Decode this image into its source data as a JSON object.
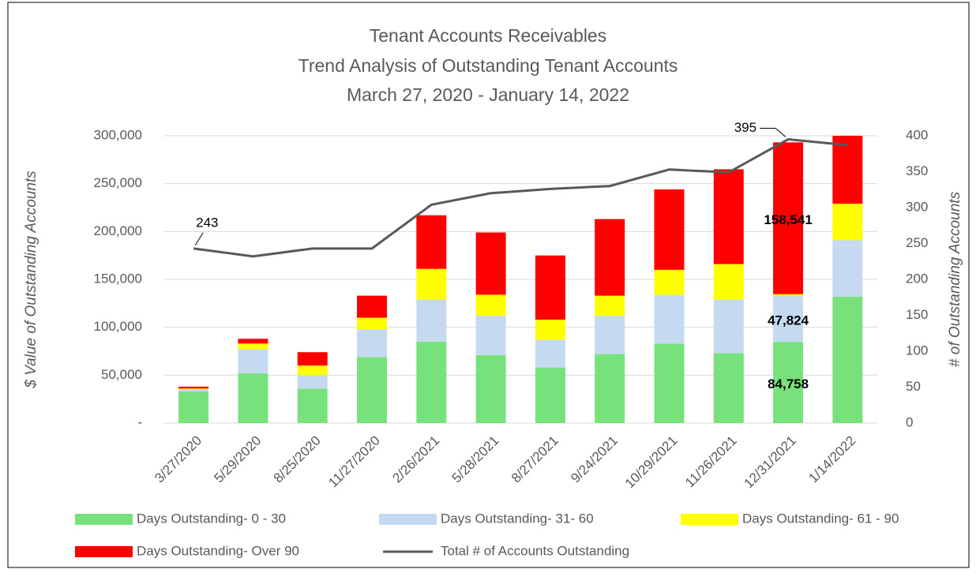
{
  "chart_data": {
    "type": "bar",
    "stacked": true,
    "title": "Tenant Accounts Receivables",
    "subtitle": [
      "Trend Analysis of Outstanding Tenant Accounts",
      "March 27, 2020 - January 14, 2022"
    ],
    "y_label": "$ Value of Outstanding Accounts",
    "y2_label": "# of Outstanding Accounts",
    "categories": [
      "3/27/2020",
      "5/29/2020",
      "8/25/2020",
      "11/27/2020",
      "2/26/2021",
      "5/28/2021",
      "8/27/2021",
      "9/24/2021",
      "10/29/2021",
      "11/26/2021",
      "12/31/2021",
      "1/14/2022"
    ],
    "series": [
      {
        "name": "Days Outstanding- 0 - 30",
        "color": "#77e27b",
        "type": "bar",
        "values": [
          33000,
          52000,
          36000,
          69000,
          85000,
          71000,
          58000,
          72000,
          83000,
          73000,
          84758,
          132000
        ],
        "value_labels": [
          null,
          null,
          null,
          null,
          null,
          null,
          null,
          null,
          null,
          null,
          "84,758",
          null
        ]
      },
      {
        "name": "Days Outstanding- 31- 60",
        "color": "#c5d9f1",
        "type": "bar",
        "values": [
          2000,
          25000,
          14000,
          29000,
          44000,
          41000,
          29000,
          40000,
          51000,
          56000,
          47824,
          59000
        ],
        "value_labels": [
          null,
          null,
          null,
          null,
          null,
          null,
          null,
          null,
          null,
          null,
          "47,824",
          null
        ]
      },
      {
        "name": "Days Outstanding- 61 - 90",
        "color": "#ffff00",
        "type": "bar",
        "values": [
          1000,
          6000,
          10000,
          12000,
          32000,
          22000,
          21000,
          21000,
          26000,
          37000,
          2000,
          38000
        ]
      },
      {
        "name": "Days Outstanding- Over 90",
        "color": "#ff0000",
        "type": "bar",
        "values": [
          2000,
          5000,
          14000,
          23000,
          56000,
          65000,
          67000,
          80000,
          84000,
          99000,
          158541,
          71000
        ],
        "value_labels": [
          null,
          null,
          null,
          null,
          null,
          null,
          null,
          null,
          null,
          null,
          "158,541",
          null
        ]
      },
      {
        "name": "Total # of Accounts Outstanding",
        "color": "#595959",
        "type": "line",
        "axis": "y2",
        "values": [
          243,
          232,
          243,
          243,
          304,
          320,
          326,
          330,
          353,
          349,
          395,
          387
        ],
        "labeled": [
          0,
          10
        ]
      }
    ],
    "ylim": [
      0,
      300000
    ],
    "yticks": [
      {
        "value": 0,
        "label": "-"
      },
      {
        "value": 50000,
        "label": "50,000"
      },
      {
        "value": 100000,
        "label": "100,000"
      },
      {
        "value": 150000,
        "label": "150,000"
      },
      {
        "value": 200000,
        "label": "200,000"
      },
      {
        "value": 250000,
        "label": "250,000"
      },
      {
        "value": 300000,
        "label": "300,000"
      }
    ],
    "y2lim": [
      0,
      400
    ],
    "y2ticks": [
      0,
      50,
      100,
      150,
      200,
      250,
      300,
      350,
      400
    ],
    "grid": true,
    "legend": "bottom"
  }
}
